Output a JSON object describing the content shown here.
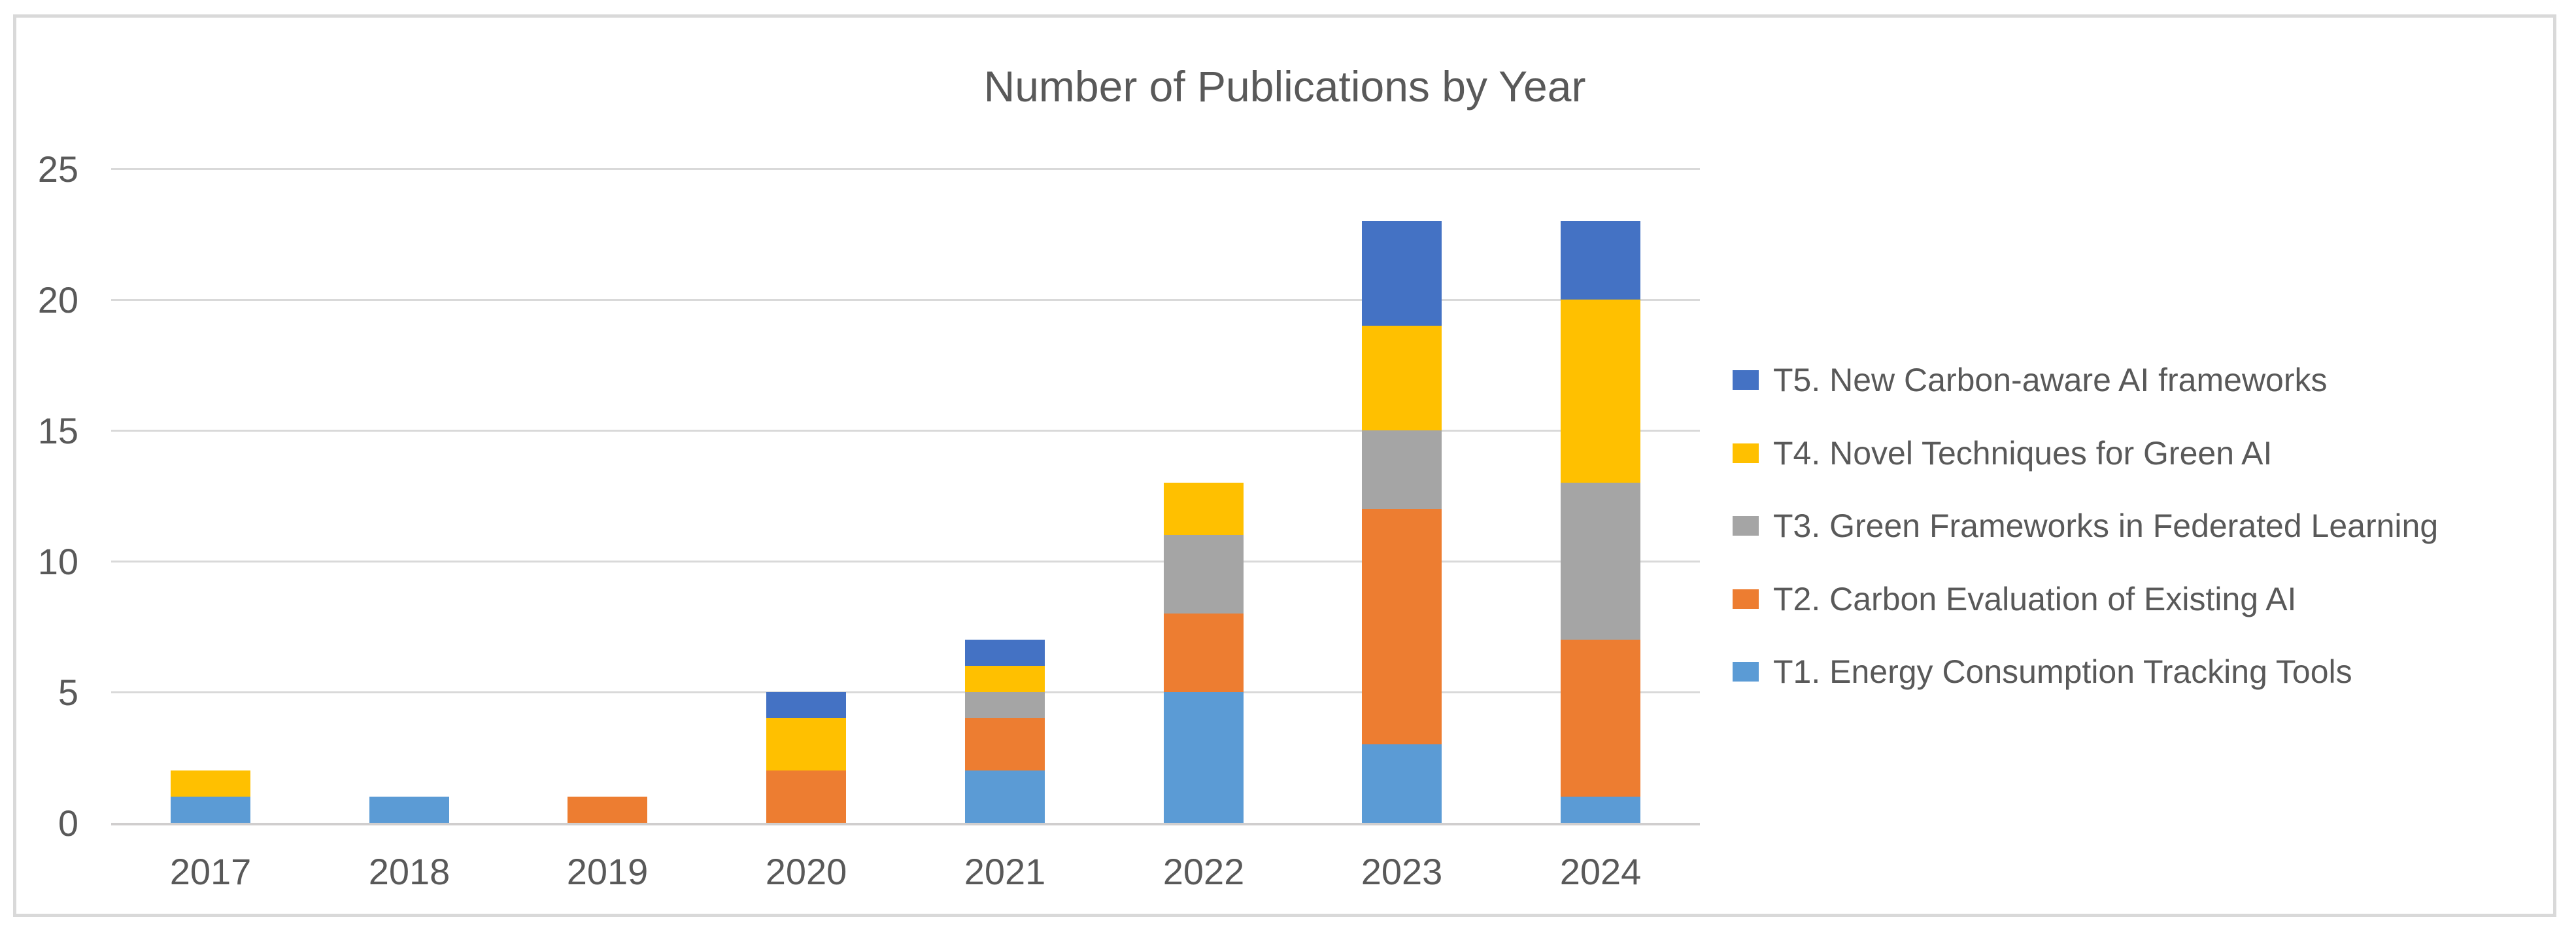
{
  "chart_data": {
    "type": "bar",
    "stacked": true,
    "title": "Number of Publications by Year",
    "categories": [
      "2017",
      "2018",
      "2019",
      "2020",
      "2021",
      "2022",
      "2023",
      "2024"
    ],
    "series": [
      {
        "name": "T1. Energy Consumption Tracking Tools",
        "color": "#5B9BD5",
        "values": [
          1,
          1,
          0,
          0,
          2,
          5,
          3,
          1
        ]
      },
      {
        "name": "T2. Carbon Evaluation of Existing AI",
        "color": "#ED7D31",
        "values": [
          0,
          0,
          1,
          2,
          2,
          3,
          9,
          6
        ]
      },
      {
        "name": "T3. Green Frameworks in Federated Learning",
        "color": "#A5A5A5",
        "values": [
          0,
          0,
          0,
          0,
          1,
          3,
          3,
          6
        ]
      },
      {
        "name": "T4. Novel Techniques for Green AI",
        "color": "#FFC000",
        "values": [
          1,
          0,
          0,
          2,
          1,
          2,
          4,
          7
        ]
      },
      {
        "name": "T5. New Carbon-aware AI frameworks",
        "color": "#4472C4",
        "values": [
          0,
          0,
          0,
          1,
          1,
          0,
          4,
          3
        ]
      }
    ],
    "ylim": [
      0,
      25
    ],
    "yticks": [
      "0",
      "5",
      "10",
      "15",
      "20",
      "25"
    ],
    "xlabel": "",
    "ylabel": "",
    "grid": true,
    "legend_position": "right",
    "legend_order_top_to_bottom": [
      "T5. New Carbon-aware AI frameworks",
      "T4. Novel Techniques for Green AI",
      "T3. Green Frameworks in Federated Learning",
      "T2. Carbon Evaluation of Existing AI",
      "T1. Energy Consumption Tracking Tools"
    ]
  },
  "style_colors": {
    "text": "#595959",
    "gridline": "#D9D9D9",
    "axis_line": "#D0CECE",
    "chart_border": "#D9D9D9",
    "background": "#FFFFFF"
  }
}
